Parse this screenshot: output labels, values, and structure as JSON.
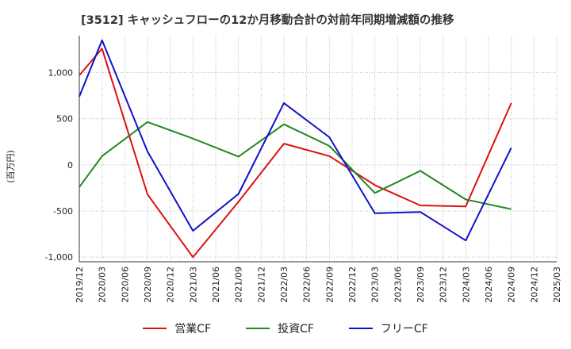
{
  "chart_data": {
    "type": "line",
    "title": "[3512]  キャッシュフローの12か月移動合計の対前年同期増減額の推移",
    "ylabel": "(百万円)",
    "xlabel": "",
    "ylim": [
      -1050,
      1400
    ],
    "yticks": [
      -1000,
      -500,
      0,
      500,
      1000
    ],
    "ytick_labels": [
      "-1,000",
      "-500",
      "0",
      "500",
      "1,000"
    ],
    "categories": [
      "2019/12",
      "2020/03",
      "2020/06",
      "2020/09",
      "2020/12",
      "2021/03",
      "2021/06",
      "2021/09",
      "2021/12",
      "2022/03",
      "2022/06",
      "2022/09",
      "2022/12",
      "2023/03",
      "2023/06",
      "2023/09",
      "2023/12",
      "2024/03",
      "2024/06",
      "2024/09",
      "2024/12",
      "2025/03"
    ],
    "grid": true,
    "legend_position": "bottom",
    "series": [
      {
        "name": "営業CF",
        "color": "#dd1111",
        "points": [
          [
            "2019/12",
            970
          ],
          [
            "2020/03",
            1260
          ],
          [
            "2020/09",
            -320
          ],
          [
            "2021/03",
            -1000
          ],
          [
            "2021/09",
            -400
          ],
          [
            "2022/03",
            230
          ],
          [
            "2022/09",
            95
          ],
          [
            "2023/03",
            -220
          ],
          [
            "2023/09",
            -440
          ],
          [
            "2024/03",
            -450
          ],
          [
            "2024/09",
            670
          ]
        ]
      },
      {
        "name": "投資CF",
        "color": "#228822",
        "points": [
          [
            "2019/12",
            -240
          ],
          [
            "2020/03",
            95
          ],
          [
            "2020/09",
            465
          ],
          [
            "2021/03",
            285
          ],
          [
            "2021/09",
            90
          ],
          [
            "2022/03",
            440
          ],
          [
            "2022/09",
            205
          ],
          [
            "2023/03",
            -305
          ],
          [
            "2023/09",
            -65
          ],
          [
            "2024/03",
            -375
          ],
          [
            "2024/09",
            -480
          ]
        ]
      },
      {
        "name": "フリーCF",
        "color": "#1111cc",
        "points": [
          [
            "2019/12",
            740
          ],
          [
            "2020/03",
            1350
          ],
          [
            "2020/09",
            145
          ],
          [
            "2021/03",
            -715
          ],
          [
            "2021/09",
            -315
          ],
          [
            "2022/03",
            670
          ],
          [
            "2022/09",
            300
          ],
          [
            "2023/03",
            -525
          ],
          [
            "2023/09",
            -510
          ],
          [
            "2024/03",
            -820
          ],
          [
            "2024/09",
            185
          ]
        ]
      }
    ]
  }
}
